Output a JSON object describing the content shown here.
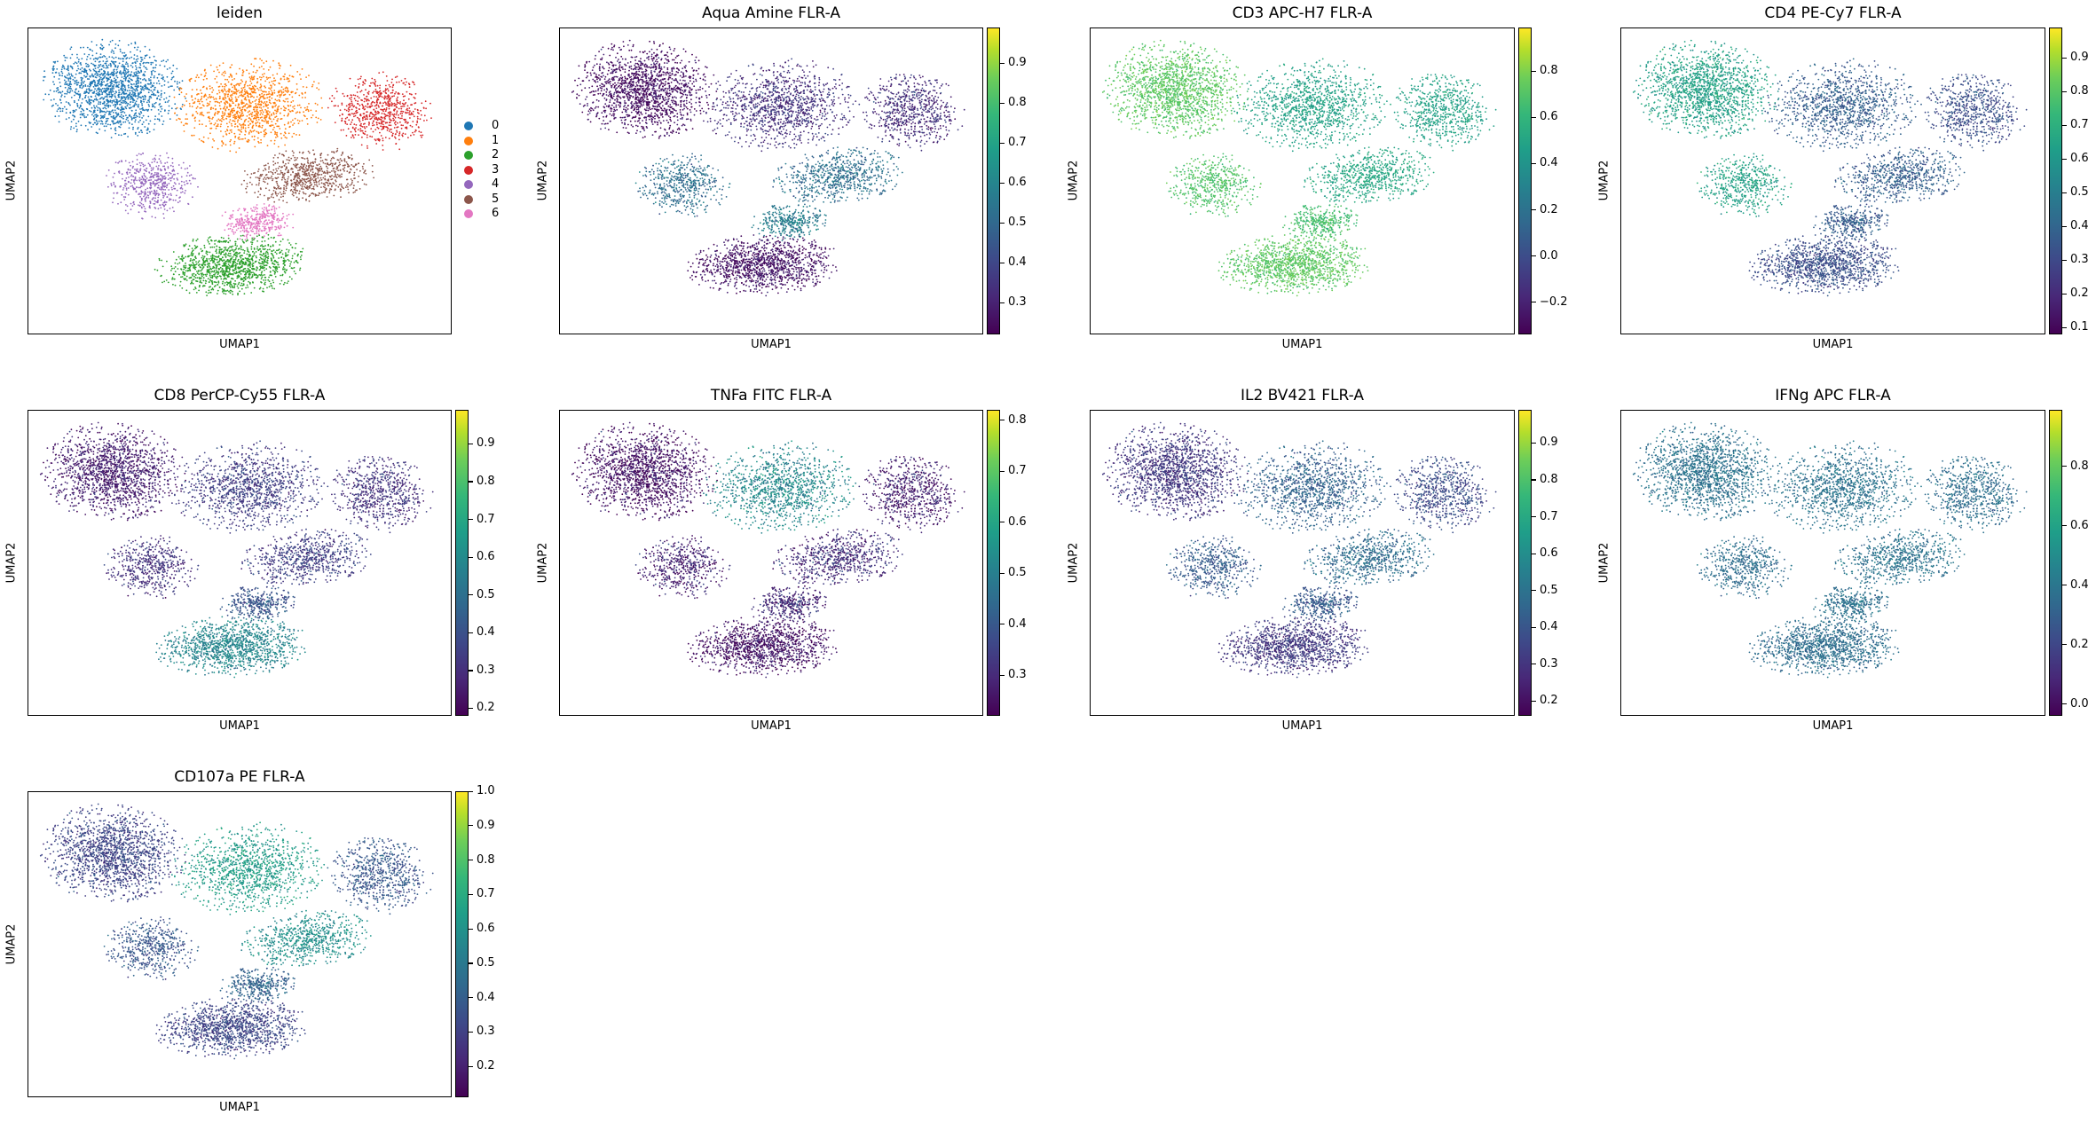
{
  "chart_data": [
    {
      "type": "scatter",
      "title": "leiden",
      "xlabel": "UMAP1",
      "ylabel": "UMAP2",
      "color_mode": "categorical",
      "legend": {
        "placement": "right",
        "entries": [
          {
            "label": "0",
            "color": "#1f77b4"
          },
          {
            "label": "1",
            "color": "#ff7f0e"
          },
          {
            "label": "2",
            "color": "#2ca02c"
          },
          {
            "label": "3",
            "color": "#d62728"
          },
          {
            "label": "4",
            "color": "#9467bd"
          },
          {
            "label": "5",
            "color": "#8c564b"
          },
          {
            "label": "6",
            "color": "#e377c2"
          }
        ]
      }
    },
    {
      "type": "scatter",
      "title": "Aqua Amine FLR-A",
      "xlabel": "UMAP1",
      "ylabel": "UMAP2",
      "colorbar": {
        "range": [
          0.22,
          0.99
        ],
        "ticks": [
          "0.3",
          "0.4",
          "0.5",
          "0.6",
          "0.7",
          "0.8",
          "0.9"
        ],
        "tick_values": [
          0.3,
          0.4,
          0.5,
          0.6,
          0.7,
          0.8,
          0.9
        ],
        "colormap": "viridis"
      },
      "cluster_levels": {
        "0": 0.25,
        "1": 0.33,
        "2": 0.26,
        "3": 0.32,
        "4": 0.5,
        "5": 0.5,
        "6": 0.55
      }
    },
    {
      "type": "scatter",
      "title": "CD3 APC-H7 FLR-A",
      "xlabel": "UMAP1",
      "ylabel": "UMAP2",
      "colorbar": {
        "range": [
          -0.34,
          0.99
        ],
        "ticks": [
          "−0.2",
          "0.0",
          "0.2",
          "0.4",
          "0.6",
          "0.8"
        ],
        "tick_values": [
          -0.2,
          0.0,
          0.2,
          0.4,
          0.6,
          0.8
        ],
        "colormap": "viridis"
      },
      "cluster_levels": {
        "0": 0.65,
        "1": 0.42,
        "2": 0.65,
        "3": 0.42,
        "4": 0.62,
        "5": 0.45,
        "6": 0.6
      }
    },
    {
      "type": "scatter",
      "title": "CD4 PE-Cy7 FLR-A",
      "xlabel": "UMAP1",
      "ylabel": "UMAP2",
      "colorbar": {
        "range": [
          0.08,
          0.99
        ],
        "ticks": [
          "0.1",
          "0.2",
          "0.3",
          "0.4",
          "0.5",
          "0.6",
          "0.7",
          "0.8",
          "0.9"
        ],
        "tick_values": [
          0.1,
          0.2,
          0.3,
          0.4,
          0.5,
          0.6,
          0.7,
          0.8,
          0.9
        ],
        "colormap": "viridis"
      },
      "cluster_levels": {
        "0": 0.6,
        "1": 0.35,
        "2": 0.3,
        "3": 0.3,
        "4": 0.6,
        "5": 0.35,
        "6": 0.35
      }
    },
    {
      "type": "scatter",
      "title": "CD8 PerCP-Cy55 FLR-A",
      "xlabel": "UMAP1",
      "ylabel": "UMAP2",
      "colorbar": {
        "range": [
          0.18,
          0.99
        ],
        "ticks": [
          "0.2",
          "0.3",
          "0.4",
          "0.5",
          "0.6",
          "0.7",
          "0.8",
          "0.9"
        ],
        "tick_values": [
          0.2,
          0.3,
          0.4,
          0.5,
          0.6,
          0.7,
          0.8,
          0.9
        ],
        "colormap": "viridis"
      },
      "cluster_levels": {
        "0": 0.25,
        "1": 0.33,
        "2": 0.55,
        "3": 0.3,
        "4": 0.3,
        "5": 0.33,
        "6": 0.4
      }
    },
    {
      "type": "scatter",
      "title": "TNFa FITC FLR-A",
      "xlabel": "UMAP1",
      "ylabel": "UMAP2",
      "colorbar": {
        "range": [
          0.22,
          0.82
        ],
        "ticks": [
          "0.3",
          "0.4",
          "0.5",
          "0.6",
          "0.7",
          "0.8"
        ],
        "tick_values": [
          0.3,
          0.4,
          0.5,
          0.6,
          0.7,
          0.8
        ],
        "colormap": "viridis"
      },
      "cluster_levels": {
        "0": 0.25,
        "1": 0.5,
        "2": 0.25,
        "3": 0.27,
        "4": 0.28,
        "5": 0.3,
        "6": 0.3
      }
    },
    {
      "type": "scatter",
      "title": "IL2 BV421 FLR-A",
      "xlabel": "UMAP1",
      "ylabel": "UMAP2",
      "colorbar": {
        "range": [
          0.16,
          0.99
        ],
        "ticks": [
          "0.2",
          "0.3",
          "0.4",
          "0.5",
          "0.6",
          "0.7",
          "0.8",
          "0.9"
        ],
        "tick_values": [
          0.2,
          0.3,
          0.4,
          0.5,
          0.6,
          0.7,
          0.8,
          0.9
        ],
        "colormap": "viridis"
      },
      "cluster_levels": {
        "0": 0.3,
        "1": 0.42,
        "2": 0.3,
        "3": 0.35,
        "4": 0.4,
        "5": 0.45,
        "6": 0.4
      }
    },
    {
      "type": "scatter",
      "title": "IFNg APC FLR-A",
      "xlabel": "UMAP1",
      "ylabel": "UMAP2",
      "colorbar": {
        "range": [
          -0.04,
          0.99
        ],
        "ticks": [
          "0.0",
          "0.2",
          "0.4",
          "0.6",
          "0.8"
        ],
        "tick_values": [
          0.0,
          0.2,
          0.4,
          0.6,
          0.8
        ],
        "colormap": "viridis"
      },
      "cluster_levels": {
        "0": 0.35,
        "1": 0.35,
        "2": 0.33,
        "3": 0.33,
        "4": 0.33,
        "5": 0.35,
        "6": 0.35
      }
    },
    {
      "type": "scatter",
      "title": "CD107a PE FLR-A",
      "xlabel": "UMAP1",
      "ylabel": "UMAP2",
      "colorbar": {
        "range": [
          0.11,
          1.0
        ],
        "ticks": [
          "0.2",
          "0.3",
          "0.4",
          "0.5",
          "0.6",
          "0.7",
          "0.8",
          "0.9",
          "1.0"
        ],
        "tick_values": [
          0.2,
          0.3,
          0.4,
          0.5,
          0.6,
          0.7,
          0.8,
          0.9,
          1.0
        ],
        "colormap": "viridis"
      },
      "cluster_levels": {
        "0": 0.3,
        "1": 0.6,
        "2": 0.3,
        "3": 0.35,
        "4": 0.35,
        "5": 0.55,
        "6": 0.4
      }
    }
  ]
}
